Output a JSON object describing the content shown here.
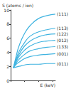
{
  "chart_data": {
    "type": "line",
    "y_label": "S (atoms / ion)",
    "x_label": "E (keV)",
    "x": [
      1,
      2,
      3,
      5,
      7,
      10,
      13,
      16
    ],
    "series": [
      {
        "name": "(111)",
        "color": "#3fb3e0",
        "values": [
          1.8,
          3.5,
          4.9,
          6.7,
          7.8,
          8.8,
          9.2,
          9.4
        ]
      },
      {
        "name": "(113)",
        "color": "#3fb3e0",
        "values": [
          1.8,
          3.1,
          4.1,
          5.4,
          6.3,
          6.9,
          7.2,
          7.4
        ]
      },
      {
        "name": "(122)",
        "color": "#3fb3e0",
        "values": [
          1.8,
          2.9,
          3.7,
          4.9,
          5.6,
          6.2,
          6.5,
          6.6
        ]
      },
      {
        "name": "(012)",
        "color": "#3fb3e0",
        "values": [
          1.8,
          2.7,
          3.4,
          4.3,
          4.9,
          5.4,
          5.6,
          5.7
        ]
      },
      {
        "name": "(133)",
        "color": "#3fb3e0",
        "values": [
          1.8,
          2.5,
          3.0,
          3.7,
          4.2,
          4.5,
          4.7,
          4.8
        ]
      },
      {
        "name": "(001)",
        "color": "#3fb3e0",
        "values": [
          1.8,
          2.3,
          2.6,
          3.1,
          3.4,
          3.6,
          3.7,
          3.8
        ]
      },
      {
        "name": "(011)",
        "color": "#3fb3e0",
        "values": [
          1.8,
          1.9,
          2.0,
          2.2,
          2.3,
          2.3,
          2.4,
          2.4
        ]
      }
    ],
    "xlim": [
      0,
      16
    ],
    "xticks": [
      0,
      5,
      10,
      15
    ],
    "ylim": [
      0,
      10
    ],
    "yticks": [
      0,
      2,
      4,
      6,
      8,
      10
    ],
    "grid": false,
    "tick_labels": "y"
  }
}
